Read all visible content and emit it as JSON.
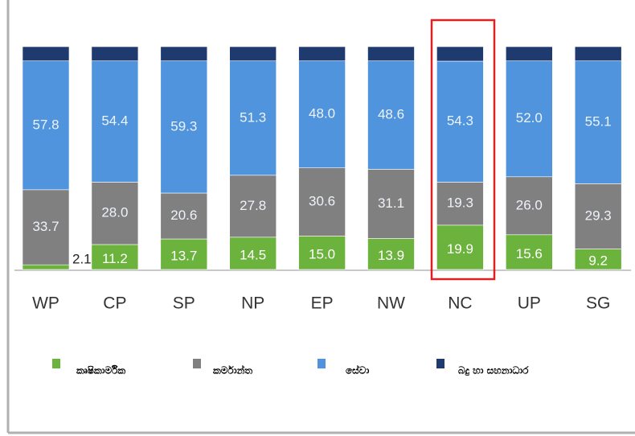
{
  "chart_data": {
    "type": "stacked_bar",
    "categories": [
      "WP",
      "CP",
      "SP",
      "NP",
      "EP",
      "NW",
      "NC",
      "UP",
      "SG"
    ],
    "series": [
      {
        "name": "කෘෂිකාර්මික",
        "color": "#6cb33e",
        "values": [
          2.1,
          11.2,
          13.7,
          14.5,
          15.0,
          13.9,
          19.9,
          15.6,
          9.2
        ],
        "value_labels": [
          "2.1",
          "11.2",
          "13.7",
          "14.5",
          "15.0",
          "13.9",
          "19.9",
          "15.6",
          "9.2"
        ]
      },
      {
        "name": "කර්මාන්ත",
        "color": "#808080",
        "values": [
          33.7,
          28.0,
          20.6,
          27.8,
          30.6,
          31.1,
          19.3,
          26.0,
          29.3
        ],
        "value_labels": [
          "33.7",
          "28.0",
          "20.6",
          "27.8",
          "30.6",
          "31.1",
          "19.3",
          "26.0",
          "29.3"
        ]
      },
      {
        "name": "සේවා",
        "color": "#4f94dc",
        "values": [
          57.8,
          54.4,
          59.3,
          51.3,
          48.0,
          48.6,
          54.3,
          52.0,
          55.1
        ],
        "value_labels": [
          "57.8",
          "54.4",
          "59.3",
          "51.3",
          "48.0",
          "48.6",
          "54.3",
          "52.0",
          "55.1"
        ]
      },
      {
        "name": "බදු හා සහනාධාර",
        "color": "#1f3a6e",
        "values": [
          6.4,
          6.4,
          6.4,
          6.4,
          6.4,
          6.4,
          6.5,
          6.4,
          6.4
        ]
      }
    ]
  }
}
